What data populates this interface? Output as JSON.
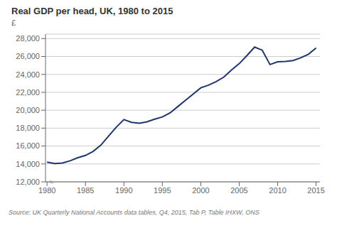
{
  "chart_data": {
    "type": "line",
    "title": "Real GDP per head, UK, 1980 to 2015",
    "ylabel": "£",
    "source": "Source: UK Quarterly National Accounts data tables, Q4, 2015, Tab P, Table IHXW, ONS",
    "annotations": [
      "≈"
    ],
    "color": "#1f3468",
    "x": [
      1980,
      1981,
      1982,
      1983,
      1984,
      1985,
      1986,
      1987,
      1988,
      1989,
      1990,
      1991,
      1992,
      1993,
      1994,
      1995,
      1996,
      1997,
      1998,
      1999,
      2000,
      2001,
      2002,
      2003,
      2004,
      2005,
      2006,
      2007,
      2008,
      2009,
      2010,
      2011,
      2012,
      2013,
      2014,
      2015
    ],
    "values": [
      14200,
      14050,
      14100,
      14350,
      14700,
      14950,
      15400,
      16100,
      17100,
      18100,
      18950,
      18650,
      18550,
      18700,
      19000,
      19250,
      19700,
      20400,
      21100,
      21800,
      22500,
      22800,
      23200,
      23700,
      24500,
      25200,
      26100,
      27050,
      26700,
      25100,
      25400,
      25450,
      25550,
      25850,
      26250,
      26950
    ],
    "xlim": [
      1979.8,
      2015.5
    ],
    "xticks": [
      1980,
      1985,
      1990,
      1995,
      2000,
      2005,
      2010,
      2015
    ],
    "ylim": [
      12000,
      28500
    ],
    "yticks": [
      {
        "value": 12000,
        "label": "12,000"
      },
      {
        "value": 14000,
        "label": "14,000"
      },
      {
        "value": 16000,
        "label": "16,000"
      },
      {
        "value": 18000,
        "label": "18,000"
      },
      {
        "value": 20000,
        "label": "20,000"
      },
      {
        "value": 22000,
        "label": "22,000"
      },
      {
        "value": 24000,
        "label": "24,000"
      },
      {
        "value": 26000,
        "label": "26,000"
      },
      {
        "value": 28000,
        "label": "28,000"
      }
    ],
    "grid": true
  }
}
